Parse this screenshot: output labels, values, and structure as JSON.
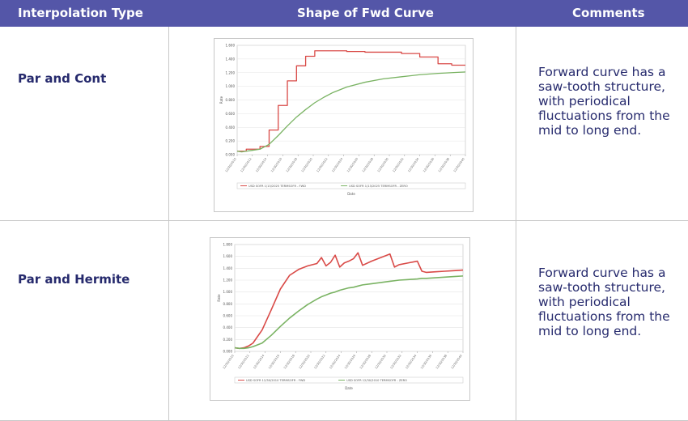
{
  "table": {
    "headers": [
      "Interpolation Type",
      "Shape of Fwd Curve",
      "Comments"
    ],
    "rows": [
      {
        "type": "Par and Cont",
        "comment_lines": [
          "Forward curve has a",
          "saw-tooth structure,",
          "with periodical",
          "fluctuations from the",
          "mid to long end."
        ]
      },
      {
        "type": "Par and Hermite",
        "comment_lines": [
          "Forward curve has a",
          "saw-tooth structure,",
          "with periodical",
          "fluctuations from the",
          "mid to long end."
        ]
      }
    ]
  },
  "colors": {
    "header_bg": "#5456a8",
    "text_navy": "#262a6d",
    "fwd_line": "#d94a47",
    "zero_line": "#7ab363"
  },
  "chart_data": [
    {
      "type": "line",
      "ylabel": "Rate",
      "xlabel": "Date",
      "ylim": [
        0,
        1.6
      ],
      "yticks": [
        "0.000",
        "0.200",
        "0.400",
        "0.600",
        "0.800",
        "1.000",
        "1.200",
        "1.400",
        "1.600"
      ],
      "xticks": [
        "12/30/2010",
        "12/30/2012",
        "12/30/2014",
        "12/30/2016",
        "12/30/2018",
        "12/30/2020",
        "12/30/2022",
        "12/30/2024",
        "12/30/2026",
        "12/30/2028",
        "12/30/2030",
        "12/30/2032",
        "12/30/2034",
        "12/30/2036",
        "12/30/2038",
        "12/30/2040"
      ],
      "x": [
        0,
        0.02,
        0.04,
        0.06,
        0.1,
        0.14,
        0.18,
        0.22,
        0.26,
        0.3,
        0.34,
        0.38,
        0.42,
        0.48,
        0.56,
        0.64,
        0.72,
        0.8,
        0.88,
        0.94,
        1.0
      ],
      "series": [
        {
          "name": "USD SOFR 1/13/2025 TERMSOFR - FWD",
          "values": [
            0.05,
            0.05,
            0.08,
            0.08,
            0.12,
            0.36,
            0.72,
            1.08,
            1.3,
            1.44,
            1.52,
            1.52,
            1.52,
            1.51,
            1.5,
            1.5,
            1.48,
            1.43,
            1.33,
            1.31,
            1.31
          ]
        },
        {
          "name": "USD SOFR 1/13/2025 TERMSOFR - ZERO",
          "values": [
            0.05,
            0.04,
            0.05,
            0.06,
            0.08,
            0.15,
            0.28,
            0.42,
            0.55,
            0.66,
            0.76,
            0.84,
            0.91,
            0.99,
            1.06,
            1.11,
            1.14,
            1.17,
            1.19,
            1.2,
            1.21
          ]
        }
      ]
    },
    {
      "type": "line",
      "ylabel": "Rate",
      "xlabel": "Date",
      "ylim": [
        0,
        1.8
      ],
      "yticks": [
        "0.000",
        "0.200",
        "0.400",
        "0.600",
        "0.800",
        "1.000",
        "1.200",
        "1.400",
        "1.600",
        "1.800"
      ],
      "xticks": [
        "12/30/2010",
        "12/30/2012",
        "12/30/2014",
        "12/30/2016",
        "12/30/2018",
        "12/30/2020",
        "12/30/2022",
        "12/30/2024",
        "12/30/2026",
        "12/30/2028",
        "12/30/2030",
        "12/30/2032",
        "12/30/2034",
        "12/30/2036",
        "12/30/2038",
        "12/30/2040"
      ],
      "x": [
        0,
        0.02,
        0.04,
        0.06,
        0.08,
        0.12,
        0.16,
        0.2,
        0.24,
        0.28,
        0.32,
        0.36,
        0.38,
        0.4,
        0.42,
        0.44,
        0.46,
        0.48,
        0.5,
        0.52,
        0.54,
        0.56,
        0.6,
        0.64,
        0.68,
        0.7,
        0.72,
        0.76,
        0.8,
        0.82,
        0.84,
        0.88,
        0.92,
        0.96,
        1.0
      ],
      "series": [
        {
          "name": "USD SOFR 12/30/2010 TERMSOFR - FWD",
          "values": [
            0.06,
            0.05,
            0.06,
            0.09,
            0.14,
            0.36,
            0.7,
            1.05,
            1.28,
            1.38,
            1.44,
            1.48,
            1.58,
            1.44,
            1.5,
            1.62,
            1.42,
            1.49,
            1.52,
            1.56,
            1.66,
            1.45,
            1.52,
            1.58,
            1.64,
            1.42,
            1.46,
            1.49,
            1.52,
            1.35,
            1.33,
            1.34,
            1.35,
            1.36,
            1.37
          ]
        },
        {
          "name": "USD SOFR 12/30/2010 TERMSOFR - ZERO",
          "values": [
            0.06,
            0.05,
            0.05,
            0.06,
            0.08,
            0.14,
            0.27,
            0.42,
            0.56,
            0.68,
            0.79,
            0.88,
            0.92,
            0.95,
            0.98,
            1.0,
            1.03,
            1.05,
            1.07,
            1.08,
            1.1,
            1.12,
            1.14,
            1.16,
            1.18,
            1.19,
            1.2,
            1.21,
            1.22,
            1.23,
            1.23,
            1.24,
            1.25,
            1.26,
            1.27
          ]
        }
      ]
    }
  ]
}
